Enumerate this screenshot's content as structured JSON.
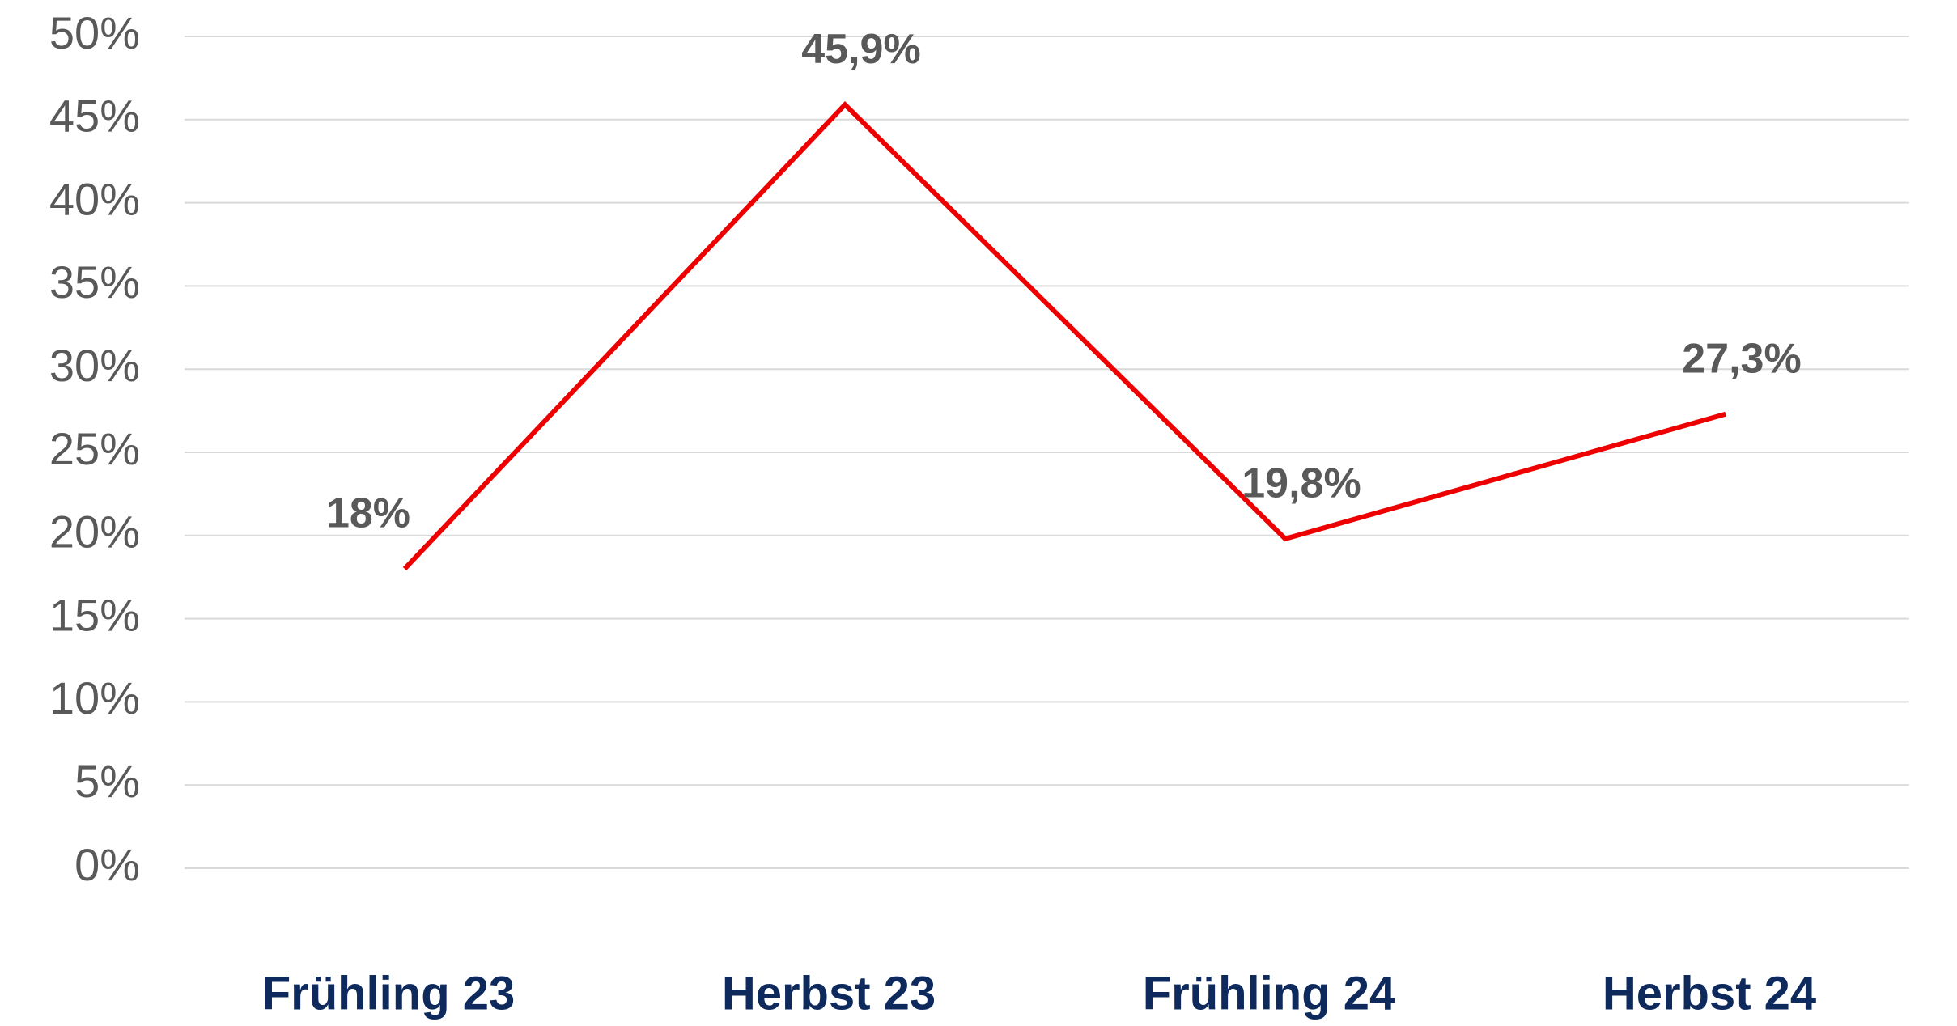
{
  "chart_data": {
    "type": "line",
    "categories": [
      "Frühling 23",
      "Herbst 23",
      "Frühling 24",
      "Herbst 24"
    ],
    "series": [
      {
        "color": "#ee0000",
        "values": [
          18,
          45.9,
          19.8,
          27.3
        ],
        "value_labels": [
          "18%",
          "45,9%",
          "19,8%",
          "27,3%"
        ]
      }
    ],
    "ylim": [
      0,
      50
    ],
    "yticks": [
      {
        "value": 0,
        "label": "0%"
      },
      {
        "value": 5,
        "label": "5%"
      },
      {
        "value": 10,
        "label": "10%"
      },
      {
        "value": 15,
        "label": "15%"
      },
      {
        "value": 20,
        "label": "20%"
      },
      {
        "value": 25,
        "label": "25%"
      },
      {
        "value": 30,
        "label": "30%"
      },
      {
        "value": 35,
        "label": "35%"
      },
      {
        "value": 40,
        "label": "40%"
      },
      {
        "value": 45,
        "label": "45%"
      },
      {
        "value": 50,
        "label": "50%"
      }
    ],
    "grid": true
  }
}
